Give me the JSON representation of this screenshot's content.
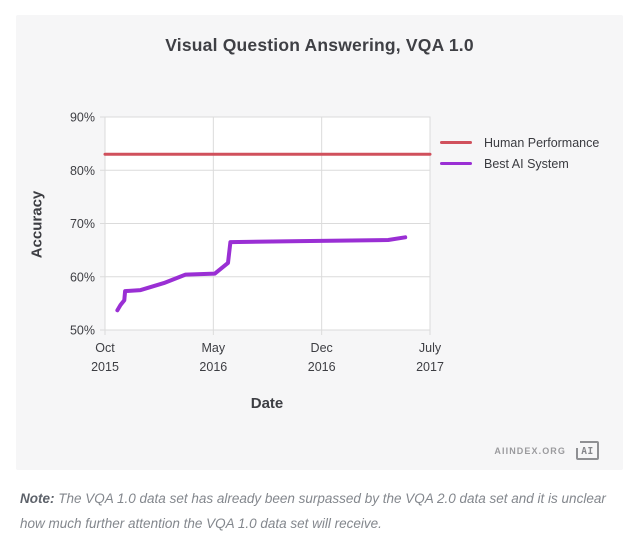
{
  "page": {
    "source_label": "AIINDEX.ORG",
    "logo_text": "AI",
    "note_prefix": "Note:",
    "note_text": " The VQA 1.0 data set has already been surpassed by the VQA 2.0 data set and it is unclear how much further attention the VQA 1.0 data set will receive."
  },
  "chart_data": {
    "type": "line",
    "title": "Visual Question Answering, VQA 1.0",
    "xlabel": "Date",
    "ylabel": "Accuracy",
    "ylim": [
      50,
      90
    ],
    "x_range_months": [
      0,
      21
    ],
    "grid": true,
    "legend_position": "right-of-plot",
    "plot_bg": "#ffffff",
    "grid_color": "#dbdbdb",
    "y_ticks": [
      {
        "value": 50,
        "label": "50%"
      },
      {
        "value": 60,
        "label": "60%"
      },
      {
        "value": 70,
        "label": "70%"
      },
      {
        "value": 80,
        "label": "80%"
      },
      {
        "value": 90,
        "label": "90%"
      }
    ],
    "x_ticks": [
      {
        "month": 0,
        "label": "Oct",
        "sub": "2015"
      },
      {
        "month": 7,
        "label": "May",
        "sub": "2016"
      },
      {
        "month": 14,
        "label": "Dec",
        "sub": "2016"
      },
      {
        "month": 21,
        "label": "July",
        "sub": "2017"
      }
    ],
    "series": [
      {
        "name": "Human Performance",
        "color": "#d0505c",
        "style": "constant",
        "value": 83,
        "stroke_width": 3
      },
      {
        "name": "Best AI System",
        "color": "#9a2fd4",
        "style": "line",
        "stroke_width": 4,
        "points": [
          {
            "month": 0.8,
            "value": 53.7
          },
          {
            "month": 1.0,
            "value": 54.7
          },
          {
            "month": 1.25,
            "value": 55.6
          },
          {
            "month": 1.3,
            "value": 57.3
          },
          {
            "month": 2.3,
            "value": 57.5
          },
          {
            "month": 3.8,
            "value": 58.8
          },
          {
            "month": 5.2,
            "value": 60.4
          },
          {
            "month": 7.1,
            "value": 60.6
          },
          {
            "month": 7.95,
            "value": 62.6
          },
          {
            "month": 8.1,
            "value": 66.5
          },
          {
            "month": 12.6,
            "value": 66.7
          },
          {
            "month": 18.3,
            "value": 66.9
          },
          {
            "month": 19.4,
            "value": 67.4
          }
        ]
      }
    ]
  }
}
